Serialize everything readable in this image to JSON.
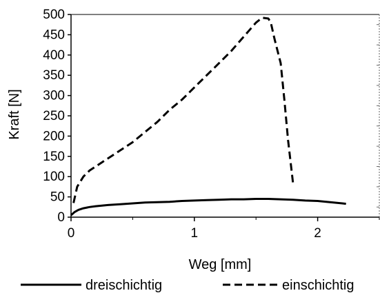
{
  "chart_data": {
    "type": "line",
    "xlabel": "Weg [mm]",
    "ylabel": "Kraft [N]",
    "xlim": [
      0,
      2.5
    ],
    "ylim": [
      0,
      500
    ],
    "xticks": [
      "0",
      "1",
      "2"
    ],
    "yticks": [
      "0",
      "50",
      "100",
      "150",
      "200",
      "250",
      "300",
      "350",
      "400",
      "450",
      "500"
    ],
    "grid": false,
    "legend_position": "bottom",
    "series": [
      {
        "name": "dreischichtig",
        "style": "solid",
        "color": "#000000",
        "x": [
          0,
          0.03,
          0.06,
          0.1,
          0.15,
          0.2,
          0.3,
          0.4,
          0.5,
          0.6,
          0.7,
          0.8,
          0.9,
          1.0,
          1.1,
          1.2,
          1.3,
          1.4,
          1.5,
          1.6,
          1.7,
          1.8,
          1.9,
          2.0,
          2.1,
          2.2,
          2.23
        ],
        "y": [
          5,
          13,
          18,
          22,
          25,
          27,
          30,
          32,
          34,
          36,
          37,
          38,
          40,
          41,
          42,
          43,
          44,
          44,
          45,
          45,
          44,
          43,
          41,
          40,
          37,
          34,
          33
        ]
      },
      {
        "name": "einschichtig",
        "style": "dashed",
        "color": "#000000",
        "x": [
          0.02,
          0.05,
          0.1,
          0.15,
          0.2,
          0.3,
          0.4,
          0.5,
          0.6,
          0.7,
          0.8,
          0.9,
          1.0,
          1.1,
          1.2,
          1.3,
          1.4,
          1.5,
          1.55,
          1.6,
          1.62,
          1.65,
          1.7,
          1.73,
          1.76,
          1.8
        ],
        "y": [
          35,
          75,
          100,
          115,
          125,
          145,
          165,
          185,
          210,
          235,
          265,
          290,
          320,
          350,
          380,
          410,
          445,
          480,
          492,
          490,
          480,
          440,
          380,
          290,
          190,
          85
        ]
      }
    ]
  }
}
